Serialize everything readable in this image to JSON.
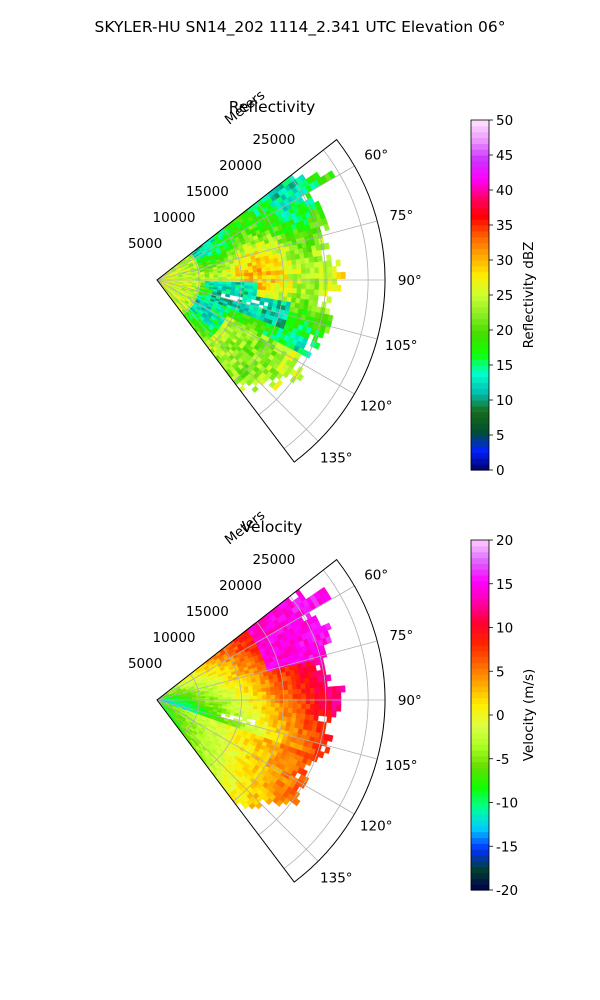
{
  "suptitle": "SKYLER-HU  SN14_202  1114_2.341 UTC Elevation 06°",
  "colors": {
    "reflectivity_stops": [
      "#000060",
      "#0020ff",
      "#005030",
      "#1a6b1a",
      "#00c0b0",
      "#00ffcc",
      "#11ff00",
      "#44dd00",
      "#88ee22",
      "#ccff33",
      "#ffee00",
      "#ffaa00",
      "#ff6600",
      "#ff0000",
      "#ff0066",
      "#ff00ff",
      "#cc33ff",
      "#ee99ff",
      "#ffe6ff"
    ],
    "velocity_stops": [
      "#000050",
      "#004030",
      "#0030ff",
      "#00ccff",
      "#00ff99",
      "#11ff00",
      "#66dd00",
      "#aaff22",
      "#ddff44",
      "#ffee00",
      "#ffaa00",
      "#ff6600",
      "#ff2200",
      "#ff0033",
      "#ff00aa",
      "#ff00ff",
      "#dd66ff",
      "#ffccff"
    ],
    "grid": "#b0b0b0"
  },
  "chart_data": [
    {
      "type": "heatmap",
      "title": "Reflectivity",
      "projection": "polar-sector",
      "range_label": "Meters",
      "range_ticks": [
        5000,
        10000,
        15000,
        20000,
        25000
      ],
      "range_tick_labels": [
        "5000",
        "10000",
        "15000",
        "20000",
        "25000"
      ],
      "angle_ticks": [
        60,
        75,
        90,
        105,
        120,
        135
      ],
      "angle_tick_labels": [
        "60°",
        "75°",
        "90°",
        "105°",
        "120°",
        "135°"
      ],
      "angle_range": [
        52,
        143
      ],
      "range_max": 27000,
      "grid": true,
      "colorbar": {
        "label": "Reflectivity dBZ",
        "vmin": 0,
        "vmax": 50,
        "ticks": [
          0,
          5,
          10,
          15,
          20,
          25,
          30,
          35,
          40,
          45,
          50
        ]
      }
    },
    {
      "type": "heatmap",
      "title": "Velocity",
      "projection": "polar-sector",
      "range_label": "Meters",
      "range_ticks": [
        5000,
        10000,
        15000,
        20000,
        25000
      ],
      "range_tick_labels": [
        "5000",
        "10000",
        "15000",
        "20000",
        "25000"
      ],
      "angle_ticks": [
        60,
        75,
        90,
        105,
        120,
        135
      ],
      "angle_tick_labels": [
        "60°",
        "75°",
        "90°",
        "105°",
        "120°",
        "135°"
      ],
      "angle_range": [
        52,
        143
      ],
      "range_max": 27000,
      "grid": true,
      "colorbar": {
        "label": "Velocity (m/s)",
        "vmin": -20,
        "vmax": 20,
        "ticks": [
          -20,
          -15,
          -10,
          -5,
          0,
          5,
          10,
          15,
          20
        ]
      }
    }
  ]
}
